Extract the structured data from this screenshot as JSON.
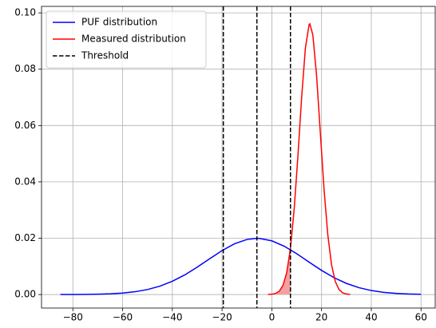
{
  "chart_data": {
    "type": "line",
    "xlim": [
      -92.6,
      65.7
    ],
    "ylim": [
      -0.0048,
      0.1023
    ],
    "xticks": [
      {
        "value": -80,
        "label": "−80"
      },
      {
        "value": -60,
        "label": "−60"
      },
      {
        "value": -40,
        "label": "−40"
      },
      {
        "value": -20,
        "label": "−20"
      },
      0,
      20,
      40,
      60
    ],
    "yticks": [
      {
        "value": 0,
        "label": "0.00"
      },
      {
        "value": 0.02,
        "label": "0.02"
      },
      {
        "value": 0.04,
        "label": "0.04"
      },
      {
        "value": 0.06,
        "label": "0.06"
      },
      {
        "value": 0.08,
        "label": "0.08"
      },
      {
        "value": 0.1,
        "label": "0.10"
      }
    ],
    "grid": true,
    "legend": "upper left",
    "series": [
      {
        "name": "PUF distribution",
        "color": "#0000ff",
        "x": [
          -85,
          -80,
          -75,
          -70,
          -65,
          -60,
          -55,
          -50,
          -45,
          -40,
          -35,
          -30,
          -25,
          -20,
          -15,
          -10,
          -6,
          -5,
          0,
          5,
          10,
          15,
          20,
          25,
          30,
          35,
          40,
          45,
          50,
          55,
          60
        ],
        "values": [
          8.2e-06,
          2.12e-05,
          5.19e-05,
          0.000119,
          0.000257,
          0.000521,
          0.000992,
          0.00177,
          0.00298,
          0.0047,
          0.00697,
          0.00971,
          0.01271,
          0.01561,
          0.01803,
          0.01955,
          0.01995,
          0.01993,
          0.01907,
          0.01715,
          0.01449,
          0.0115,
          0.00857,
          0.006,
          0.00395,
          0.00244,
          0.00142,
          0.000773,
          0.000396,
          0.000191,
          8.62e-05
        ]
      },
      {
        "name": "Measured distribution",
        "color": "#ff0000",
        "shade_color": "#f4a0a0",
        "shade_xmax": 7.5,
        "x": [
          -1.5,
          0,
          1.5,
          3,
          4.5,
          6,
          7.5,
          9,
          10.5,
          12,
          13.5,
          15,
          15.3,
          16.5,
          18,
          19.5,
          21,
          22.5,
          24,
          25.5,
          27,
          28.5,
          30,
          31.5
        ],
        "values": [
          2.66e-05,
          0.000107,
          0.000381,
          0.00119,
          0.00325,
          0.0078,
          0.01643,
          0.03037,
          0.04922,
          0.07007,
          0.08747,
          0.09585,
          0.0961,
          0.09217,
          0.07776,
          0.05759,
          0.03743,
          0.02133,
          0.01068,
          0.00469,
          0.00181,
          0.00061,
          0.000181,
          4.7e-05
        ]
      }
    ],
    "vlines": {
      "name": "Threshold",
      "color": "#000000",
      "x": [
        -19.5,
        -6,
        7.5
      ]
    }
  }
}
